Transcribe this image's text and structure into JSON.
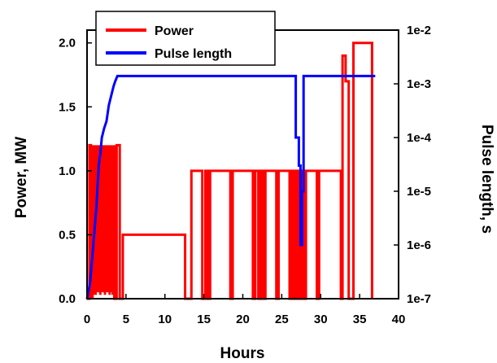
{
  "chart_data": {
    "type": "line",
    "xlabel": "Hours",
    "ylabel": "Power, MW",
    "y2label": "Pulse length, s",
    "xlim": [
      0,
      40
    ],
    "ylim": [
      0,
      2.1
    ],
    "y2lim": [
      1e-07,
      0.01
    ],
    "y2scale": "log",
    "xticks": [
      "0",
      "5",
      "10",
      "15",
      "20",
      "25",
      "30",
      "35",
      "40"
    ],
    "yticks": [
      "0.0",
      "0.5",
      "1.0",
      "1.5",
      "2.0"
    ],
    "y2ticks": [
      "1e-7",
      "1e-6",
      "1e-5",
      "1e-4",
      "1e-3",
      "1e-2"
    ],
    "grid": false,
    "legend": "top-left",
    "series": [
      {
        "name": "Power",
        "color": "#ff0000",
        "axis": "left",
        "points": [
          [
            0,
            0
          ],
          [
            0.3,
            0
          ],
          [
            0.3,
            1.2
          ],
          [
            0.5,
            1.2
          ],
          [
            0.5,
            0
          ],
          [
            0.7,
            1.2
          ],
          [
            0.7,
            0
          ],
          [
            0.9,
            1.2
          ],
          [
            0.9,
            0.03
          ],
          [
            1.1,
            1.2
          ],
          [
            1.1,
            0.03
          ],
          [
            1.3,
            1.2
          ],
          [
            1.3,
            0.05
          ],
          [
            1.5,
            1.2
          ],
          [
            1.5,
            0.05
          ],
          [
            1.7,
            1.2
          ],
          [
            1.7,
            0.03
          ],
          [
            1.9,
            1.2
          ],
          [
            1.9,
            0.05
          ],
          [
            2.1,
            1.2
          ],
          [
            2.1,
            0.05
          ],
          [
            2.3,
            1.2
          ],
          [
            2.3,
            0.03
          ],
          [
            2.5,
            1.2
          ],
          [
            2.5,
            0.05
          ],
          [
            2.7,
            1.2
          ],
          [
            2.7,
            0.05
          ],
          [
            2.9,
            1.2
          ],
          [
            2.9,
            0.03
          ],
          [
            3.1,
            1.2
          ],
          [
            3.1,
            0.05
          ],
          [
            3.3,
            1.2
          ],
          [
            3.3,
            0.03
          ],
          [
            3.5,
            1.2
          ],
          [
            3.5,
            0
          ],
          [
            3.8,
            0
          ],
          [
            3.8,
            1.2
          ],
          [
            4.2,
            1.2
          ],
          [
            4.2,
            0
          ],
          [
            4.6,
            0
          ],
          [
            4.6,
            0.5
          ],
          [
            12.6,
            0.5
          ],
          [
            12.6,
            0
          ],
          [
            13.4,
            0
          ],
          [
            13.4,
            1.0
          ],
          [
            14.8,
            1.0
          ],
          [
            14.8,
            0
          ],
          [
            15.2,
            0
          ],
          [
            15.2,
            1.0
          ],
          [
            15.5,
            1.0
          ],
          [
            15.5,
            0
          ],
          [
            15.8,
            0
          ],
          [
            15.8,
            1.0
          ],
          [
            18.4,
            1.0
          ],
          [
            18.4,
            0
          ],
          [
            18.7,
            0
          ],
          [
            18.7,
            1.0
          ],
          [
            21.3,
            1.0
          ],
          [
            21.3,
            0
          ],
          [
            21.6,
            0
          ],
          [
            21.6,
            1.0
          ],
          [
            22.0,
            1.0
          ],
          [
            22.0,
            0
          ],
          [
            22.3,
            0
          ],
          [
            22.3,
            1.0
          ],
          [
            22.6,
            1.0
          ],
          [
            22.6,
            0
          ],
          [
            22.9,
            0
          ],
          [
            22.9,
            1.0
          ],
          [
            24.3,
            1.0
          ],
          [
            24.3,
            0
          ],
          [
            24.6,
            0
          ],
          [
            24.6,
            1.0
          ],
          [
            26.0,
            1.0
          ],
          [
            26.0,
            0
          ],
          [
            26.3,
            0
          ],
          [
            26.3,
            1.0
          ],
          [
            26.6,
            1.0
          ],
          [
            26.6,
            0
          ],
          [
            26.9,
            0
          ],
          [
            26.9,
            1.0
          ],
          [
            27.2,
            1.0
          ],
          [
            27.2,
            0
          ],
          [
            27.5,
            0
          ],
          [
            27.5,
            1.0
          ],
          [
            27.8,
            1.0
          ],
          [
            27.8,
            0
          ],
          [
            28.1,
            0
          ],
          [
            28.1,
            1.0
          ],
          [
            29.5,
            1.0
          ],
          [
            29.5,
            0
          ],
          [
            29.8,
            0
          ],
          [
            29.8,
            1.0
          ],
          [
            32.6,
            1.0
          ],
          [
            32.6,
            0
          ],
          [
            32.8,
            0
          ],
          [
            32.8,
            1.9
          ],
          [
            33.2,
            1.9
          ],
          [
            33.2,
            1.7
          ],
          [
            33.6,
            1.7
          ],
          [
            33.6,
            0
          ],
          [
            34.2,
            0
          ],
          [
            34.2,
            2.0
          ],
          [
            36.6,
            2.0
          ],
          [
            36.6,
            0
          ]
        ]
      },
      {
        "name": "Pulse length",
        "color": "#0000ff",
        "axis": "right",
        "points": [
          [
            0,
            1e-07
          ],
          [
            0.4,
            2e-07
          ],
          [
            0.8,
            1e-06
          ],
          [
            1.2,
            5e-06
          ],
          [
            1.5,
            3e-05
          ],
          [
            1.7,
            5e-05
          ],
          [
            1.9,
            0.0001
          ],
          [
            2.2,
            0.00015
          ],
          [
            2.5,
            0.0002
          ],
          [
            2.8,
            0.0004
          ],
          [
            3.1,
            0.0006
          ],
          [
            3.4,
            0.0009
          ],
          [
            3.6,
            0.0011
          ],
          [
            3.9,
            0.0014
          ],
          [
            26.8,
            0.0014
          ],
          [
            26.8,
            0.0001
          ],
          [
            27.2,
            0.0001
          ],
          [
            27.2,
            3e-05
          ],
          [
            27.4,
            3e-05
          ],
          [
            27.4,
            1e-06
          ],
          [
            27.6,
            1e-06
          ],
          [
            27.6,
            1e-05
          ],
          [
            27.8,
            1e-05
          ],
          [
            27.8,
            0.0014
          ],
          [
            37,
            0.0014
          ]
        ]
      }
    ]
  }
}
